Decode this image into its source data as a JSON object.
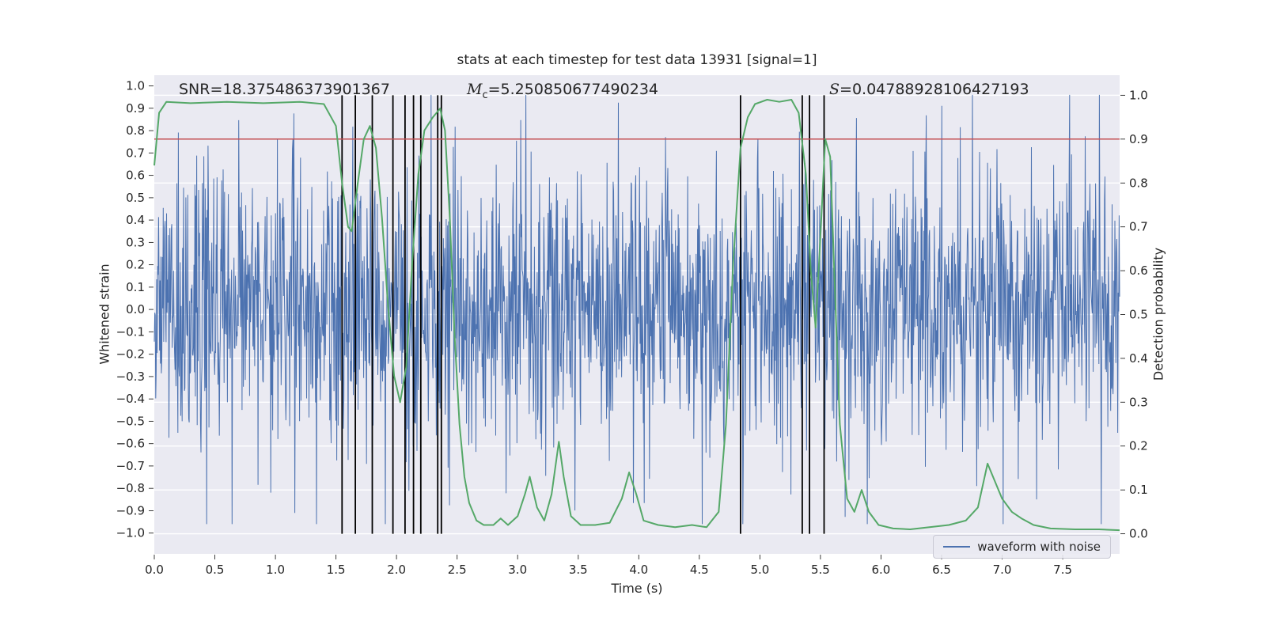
{
  "chart_data": {
    "type": "line",
    "title": "stats at each timestep for test data 13931 [signal=1]",
    "xlabel": "Time (s)",
    "ylabel_left": "Whitened strain",
    "ylabel_right": "Detection probability",
    "xlim": [
      0,
      7.97
    ],
    "ylim_left": [
      -1.093,
      1.048
    ],
    "ylim_right": [
      -0.0459,
      1.0459
    ],
    "xticks": [
      0.0,
      0.5,
      1.0,
      1.5,
      2.0,
      2.5,
      3.0,
      3.5,
      4.0,
      4.5,
      5.0,
      5.5,
      6.0,
      6.5,
      7.0,
      7.5
    ],
    "yticks_left": [
      -1.0,
      -0.9,
      -0.8,
      -0.7,
      -0.6,
      -0.5,
      -0.4,
      -0.3,
      -0.2,
      -0.1,
      0.0,
      0.1,
      0.2,
      0.3,
      0.4,
      0.5,
      0.6,
      0.7,
      0.8,
      0.9,
      1.0
    ],
    "yticks_right": [
      0.0,
      0.1,
      0.2,
      0.3,
      0.4,
      0.5,
      0.6,
      0.7,
      0.8,
      0.9,
      1.0
    ],
    "grid": {
      "axis": "right-y",
      "step": 0.1,
      "color": "#ffffff"
    },
    "background": "#eaeaf2",
    "legend": {
      "label": "waveform with noise",
      "position": "lower right"
    },
    "annotations": [
      {
        "id": "snr",
        "lead": "SNR",
        "italic": false,
        "sub": "",
        "value": "=18.375486373901367",
        "t": 0.2
      },
      {
        "id": "chirp-mass",
        "lead": "M",
        "italic": true,
        "sub": "c",
        "value": "=5.250850677490234",
        "t": 2.58
      },
      {
        "id": "s-value",
        "lead": "S",
        "italic": true,
        "sub": "",
        "value": "=0.04788928106427193",
        "t": 5.57
      }
    ],
    "threshold": {
      "axis": "right",
      "value": 0.9,
      "color": "#c44e52"
    },
    "event_vlines": {
      "color": "#000000",
      "times": [
        1.55,
        1.66,
        1.8,
        1.97,
        2.07,
        2.14,
        2.2,
        2.34,
        2.37,
        4.84,
        5.35,
        5.41,
        5.53
      ]
    },
    "series": [
      {
        "name": "waveform with noise",
        "axis": "left",
        "color": "#4c72b0",
        "kind": "noise",
        "noise": {
          "seed": 13931,
          "n": 2048,
          "std": 0.3,
          "spike_prob": 0.05,
          "spike_scale": 2.2,
          "clip": 0.96
        }
      },
      {
        "name": "detection probability",
        "axis": "right",
        "color": "#55a868",
        "kind": "points",
        "points": [
          [
            0.0,
            0.84
          ],
          [
            0.04,
            0.96
          ],
          [
            0.1,
            0.985
          ],
          [
            0.3,
            0.982
          ],
          [
            0.6,
            0.985
          ],
          [
            0.9,
            0.982
          ],
          [
            1.2,
            0.985
          ],
          [
            1.4,
            0.98
          ],
          [
            1.5,
            0.93
          ],
          [
            1.55,
            0.8
          ],
          [
            1.6,
            0.7
          ],
          [
            1.63,
            0.69
          ],
          [
            1.68,
            0.8
          ],
          [
            1.73,
            0.9
          ],
          [
            1.78,
            0.93
          ],
          [
            1.83,
            0.88
          ],
          [
            1.88,
            0.72
          ],
          [
            1.93,
            0.52
          ],
          [
            1.98,
            0.36
          ],
          [
            2.03,
            0.3
          ],
          [
            2.08,
            0.38
          ],
          [
            2.13,
            0.62
          ],
          [
            2.18,
            0.82
          ],
          [
            2.23,
            0.92
          ],
          [
            2.3,
            0.95
          ],
          [
            2.36,
            0.97
          ],
          [
            2.4,
            0.92
          ],
          [
            2.44,
            0.72
          ],
          [
            2.48,
            0.45
          ],
          [
            2.52,
            0.25
          ],
          [
            2.56,
            0.13
          ],
          [
            2.6,
            0.07
          ],
          [
            2.66,
            0.03
          ],
          [
            2.72,
            0.02
          ],
          [
            2.8,
            0.02
          ],
          [
            2.86,
            0.035
          ],
          [
            2.92,
            0.02
          ],
          [
            3.0,
            0.04
          ],
          [
            3.06,
            0.09
          ],
          [
            3.1,
            0.13
          ],
          [
            3.16,
            0.06
          ],
          [
            3.22,
            0.03
          ],
          [
            3.28,
            0.09
          ],
          [
            3.34,
            0.21
          ],
          [
            3.38,
            0.13
          ],
          [
            3.44,
            0.04
          ],
          [
            3.52,
            0.02
          ],
          [
            3.64,
            0.02
          ],
          [
            3.76,
            0.025
          ],
          [
            3.86,
            0.08
          ],
          [
            3.92,
            0.14
          ],
          [
            3.98,
            0.09
          ],
          [
            4.04,
            0.03
          ],
          [
            4.16,
            0.02
          ],
          [
            4.3,
            0.015
          ],
          [
            4.44,
            0.02
          ],
          [
            4.56,
            0.015
          ],
          [
            4.66,
            0.05
          ],
          [
            4.72,
            0.25
          ],
          [
            4.78,
            0.62
          ],
          [
            4.84,
            0.88
          ],
          [
            4.9,
            0.95
          ],
          [
            4.96,
            0.98
          ],
          [
            5.06,
            0.99
          ],
          [
            5.16,
            0.985
          ],
          [
            5.26,
            0.99
          ],
          [
            5.32,
            0.96
          ],
          [
            5.38,
            0.82
          ],
          [
            5.42,
            0.6
          ],
          [
            5.46,
            0.47
          ],
          [
            5.5,
            0.68
          ],
          [
            5.54,
            0.9
          ],
          [
            5.58,
            0.86
          ],
          [
            5.62,
            0.55
          ],
          [
            5.66,
            0.25
          ],
          [
            5.72,
            0.08
          ],
          [
            5.78,
            0.05
          ],
          [
            5.84,
            0.1
          ],
          [
            5.9,
            0.05
          ],
          [
            5.98,
            0.02
          ],
          [
            6.1,
            0.012
          ],
          [
            6.24,
            0.01
          ],
          [
            6.4,
            0.015
          ],
          [
            6.56,
            0.02
          ],
          [
            6.7,
            0.03
          ],
          [
            6.8,
            0.06
          ],
          [
            6.88,
            0.16
          ],
          [
            6.94,
            0.12
          ],
          [
            7.0,
            0.08
          ],
          [
            7.08,
            0.05
          ],
          [
            7.16,
            0.035
          ],
          [
            7.26,
            0.02
          ],
          [
            7.4,
            0.012
          ],
          [
            7.6,
            0.01
          ],
          [
            7.8,
            0.01
          ],
          [
            7.97,
            0.008
          ]
        ]
      }
    ]
  }
}
